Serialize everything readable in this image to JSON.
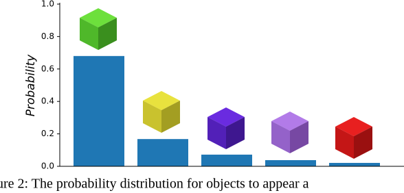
{
  "chart_data": {
    "type": "bar",
    "ylabel": "Probability",
    "categories": [
      null,
      null,
      null,
      null,
      null
    ],
    "values": [
      0.68,
      0.168,
      0.072,
      0.038,
      0.021
    ],
    "color": "#1f77b4",
    "ylim": [
      0,
      1
    ],
    "yticks": [
      {
        "value": 0,
        "label": "0.0"
      },
      0.2,
      0.4,
      0.6,
      0.8,
      {
        "value": 1,
        "label": "1.0"
      }
    ],
    "caption": "ure 2: The probability distribution for objects to appear a"
  }
}
